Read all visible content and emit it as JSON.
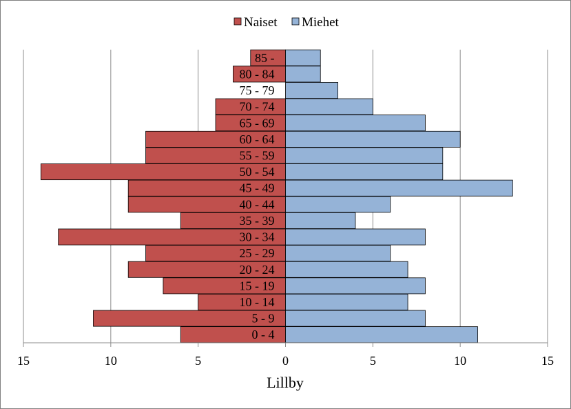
{
  "chart_data": {
    "type": "bar",
    "orientation": "horizontal",
    "subtype": "population-pyramid",
    "title": "",
    "xlabel": "Lillby",
    "ylabel": "",
    "xlim": [
      -15,
      15
    ],
    "xticks": [
      -15,
      -10,
      -5,
      0,
      5,
      10,
      15
    ],
    "xtick_labels": [
      "15",
      "10",
      "5",
      "0",
      "5",
      "10",
      "15"
    ],
    "grid": "vertical major gridlines",
    "legend_position": "top-center",
    "categories": [
      "0 - 4",
      "5 - 9",
      "10 - 14",
      "15 - 19",
      "20 - 24",
      "25 - 29",
      "30 - 34",
      "35 - 39",
      "40 - 44",
      "45 - 49",
      "50 - 54",
      "55 - 59",
      "60 - 64",
      "65 - 69",
      "70 - 74",
      "75 - 79",
      "80 - 84",
      "85 -"
    ],
    "series": [
      {
        "name": "Naiset",
        "color": "#c0504d",
        "values": [
          6,
          11,
          5,
          7,
          9,
          8,
          13,
          6,
          9,
          9,
          14,
          8,
          8,
          4,
          4,
          0,
          3,
          2
        ]
      },
      {
        "name": "Miehet",
        "color": "#95b3d7",
        "values": [
          11,
          8,
          7,
          8,
          7,
          6,
          8,
          4,
          6,
          13,
          9,
          9,
          10,
          8,
          5,
          3,
          2,
          2
        ]
      }
    ]
  }
}
